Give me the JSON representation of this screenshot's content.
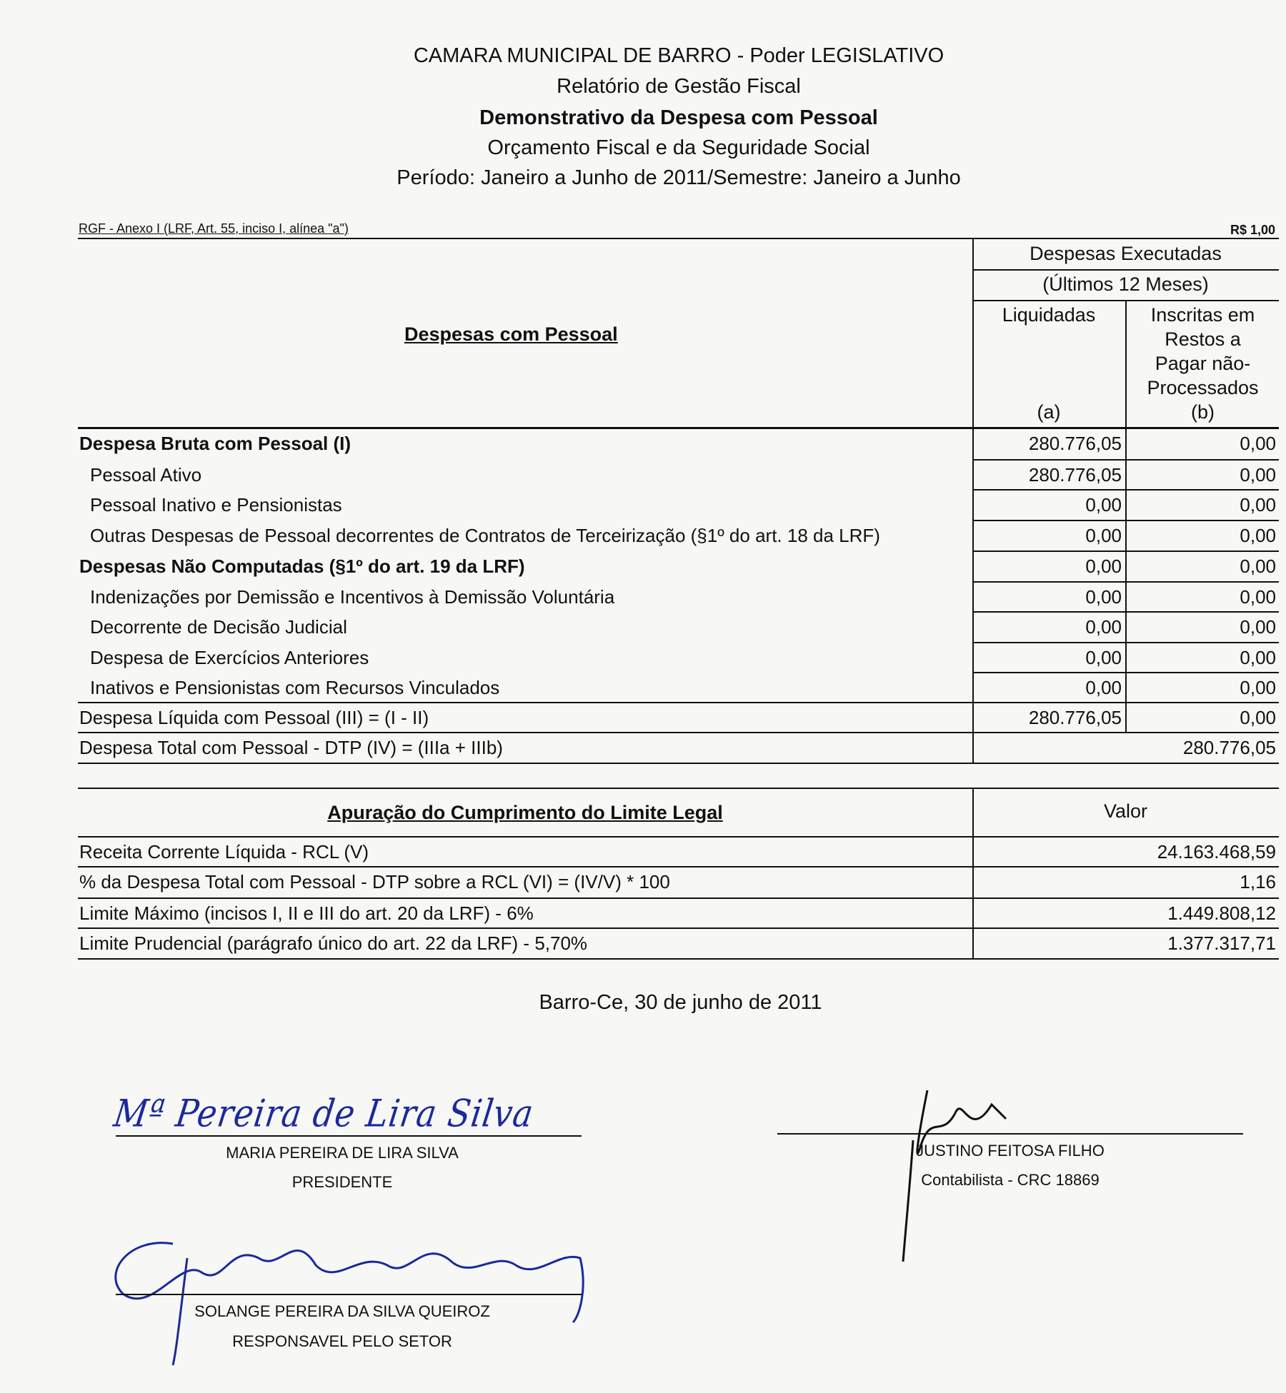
{
  "header": {
    "line1": "CAMARA MUNICIPAL DE BARRO - Poder LEGISLATIVO",
    "line2": "Relatório de Gestão Fiscal",
    "line3": "Demonstrativo da Despesa com Pessoal",
    "line4": "Orçamento Fiscal e da Seguridade Social",
    "line5": "Período: Janeiro a Junho de 2011/Semestre: Janeiro a Junho"
  },
  "annex": {
    "left": "RGF - Anexo I (LRF, Art. 55, inciso I, alínea \"a\")",
    "right": "R$ 1,00"
  },
  "table1": {
    "title": "Despesas com Pessoal",
    "group_header_1": "Despesas Executadas",
    "group_header_2": "(Últimos 12 Meses)",
    "col_a_label": "Liquidadas",
    "col_a_code": "(a)",
    "col_b_label": [
      "Inscritas em",
      "Restos a",
      "Pagar não-",
      "Processados"
    ],
    "col_b_code": "(b)",
    "rows": [
      {
        "label": "Despesa Bruta com Pessoal (I)",
        "a": "280.776,05",
        "b": "0,00",
        "bold": true,
        "indent": false
      },
      {
        "label": "Pessoal Ativo",
        "a": "280.776,05",
        "b": "0,00",
        "bold": false,
        "indent": true
      },
      {
        "label": "Pessoal Inativo e Pensionistas",
        "a": "0,00",
        "b": "0,00",
        "bold": false,
        "indent": true
      },
      {
        "label": "Outras Despesas de Pessoal decorrentes de Contratos de Terceirização (§1º do art. 18 da LRF)",
        "a": "0,00",
        "b": "0,00",
        "bold": false,
        "indent": true
      },
      {
        "label": "Despesas Não Computadas (§1º do art. 19 da LRF)",
        "a": "0,00",
        "b": "0,00",
        "bold": true,
        "indent": false
      },
      {
        "label": "Indenizações por Demissão e Incentivos à Demissão Voluntária",
        "a": "0,00",
        "b": "0,00",
        "bold": false,
        "indent": true
      },
      {
        "label": "Decorrente de Decisão Judicial",
        "a": "0,00",
        "b": "0,00",
        "bold": false,
        "indent": true
      },
      {
        "label": "Despesa de Exercícios Anteriores",
        "a": "0,00",
        "b": "0,00",
        "bold": false,
        "indent": true
      },
      {
        "label": "Inativos e Pensionistas com Recursos Vinculados",
        "a": "0,00",
        "b": "0,00",
        "bold": false,
        "indent": true
      },
      {
        "label": "Despesa Líquida com Pessoal (III) = (I - II)",
        "a": "280.776,05",
        "b": "0,00",
        "bold": false,
        "indent": false
      }
    ],
    "total": {
      "label": "Despesa Total com Pessoal - DTP (IV) = (IIIa + IIIb)",
      "value": "280.776,05"
    }
  },
  "table2": {
    "title": "Apuração do Cumprimento do Limite Legal",
    "value_header": "Valor",
    "rows": [
      {
        "label": "Receita Corrente Líquida - RCL (V)",
        "value": "24.163.468,59"
      },
      {
        "label": "% da Despesa Total com Pessoal - DTP sobre a RCL (VI) = (IV/V) * 100",
        "value": "1,16"
      },
      {
        "label": "Limite Máximo (incisos I, II e III do art. 20 da LRF) - 6%",
        "value": "1.449.808,12"
      },
      {
        "label": "Limite Prudencial (parágrafo único do art. 22 da LRF) - 5,70%",
        "value": "1.377.317,71"
      }
    ]
  },
  "date_line": "Barro-Ce, 30 de junho de 2011",
  "signatures": [
    {
      "name": "MARIA PEREIRA DE LIRA SILVA",
      "role": "PRESIDENTE",
      "handwriting": "Mª Pereira de Lira Silva",
      "ink": "#1a2a9a"
    },
    {
      "name": "JUSTINO FEITOSA FILHO",
      "role": "Contabilista - CRC 18869",
      "handwriting": "Justino",
      "ink": "#111111"
    },
    {
      "name": "SOLANGE PEREIRA DA SILVA QUEIROZ",
      "role": "RESPONSAVEL PELO SETOR",
      "handwriting": "Solange Pereira da Silva Queiroz",
      "ink": "#1a2a9a"
    }
  ]
}
